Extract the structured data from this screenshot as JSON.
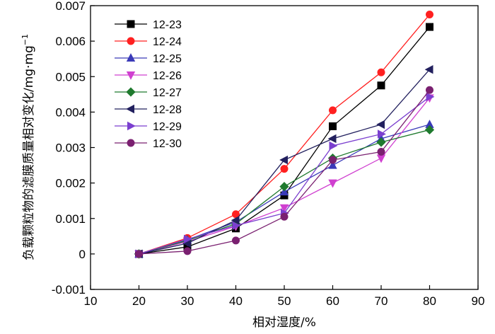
{
  "chart_data": {
    "type": "line",
    "title": "",
    "xlabel": "相对湿度/%",
    "ylabel": "负载颗粒物的滤膜质量相对变化/mg·mg",
    "ylabel_sup": "−1",
    "xlim": [
      10,
      90
    ],
    "ylim": [
      -0.001,
      0.007
    ],
    "xticks": [
      10,
      20,
      30,
      40,
      50,
      60,
      70,
      80,
      90
    ],
    "yticks": [
      -0.001,
      0,
      0.001,
      0.002,
      0.003,
      0.004,
      0.005,
      0.006,
      0.007
    ],
    "xtick_labels": [
      "10",
      "20",
      "30",
      "40",
      "50",
      "60",
      "70",
      "80",
      "90"
    ],
    "ytick_labels": [
      "-0.001",
      "0",
      "0.001",
      "0.002",
      "0.003",
      "0.004",
      "0.005",
      "0.006",
      "0.007"
    ],
    "grid": false,
    "legend_position": "top-left",
    "x": [
      20,
      30,
      40,
      50,
      60,
      70,
      80
    ],
    "series": [
      {
        "name": "12-23",
        "color": "#000000",
        "marker": "square",
        "values": [
          0,
          0.0002,
          0.00072,
          0.00165,
          0.0036,
          0.00475,
          0.0064
        ]
      },
      {
        "name": "12-24",
        "color": "#ff2020",
        "marker": "circle",
        "values": [
          0,
          0.00045,
          0.00112,
          0.0024,
          0.00405,
          0.00512,
          0.00675
        ]
      },
      {
        "name": "12-25",
        "color": "#3a3ab8",
        "marker": "triangle-up",
        "values": [
          0,
          0.0004,
          0.0009,
          0.00175,
          0.0025,
          0.00325,
          0.00365
        ]
      },
      {
        "name": "12-26",
        "color": "#d040d0",
        "marker": "triangle-down",
        "values": [
          0,
          0.00035,
          0.00078,
          0.0013,
          0.002,
          0.0027,
          0.0044
        ]
      },
      {
        "name": "12-27",
        "color": "#1f7a2e",
        "marker": "diamond",
        "values": [
          0,
          0.00038,
          0.00085,
          0.0019,
          0.0027,
          0.00315,
          0.0035
        ]
      },
      {
        "name": "12-28",
        "color": "#22205e",
        "marker": "triangle-left",
        "values": [
          0,
          0.0003,
          0.00095,
          0.00265,
          0.00325,
          0.00365,
          0.0052
        ]
      },
      {
        "name": "12-29",
        "color": "#7b3fcf",
        "marker": "triangle-right",
        "values": [
          0,
          0.00042,
          0.0008,
          0.00115,
          0.00305,
          0.00338,
          0.00443
        ]
      },
      {
        "name": "12-30",
        "color": "#7a2070",
        "marker": "circle",
        "values": [
          0,
          8e-05,
          0.00038,
          0.00105,
          0.00265,
          0.00288,
          0.00462
        ]
      }
    ]
  }
}
